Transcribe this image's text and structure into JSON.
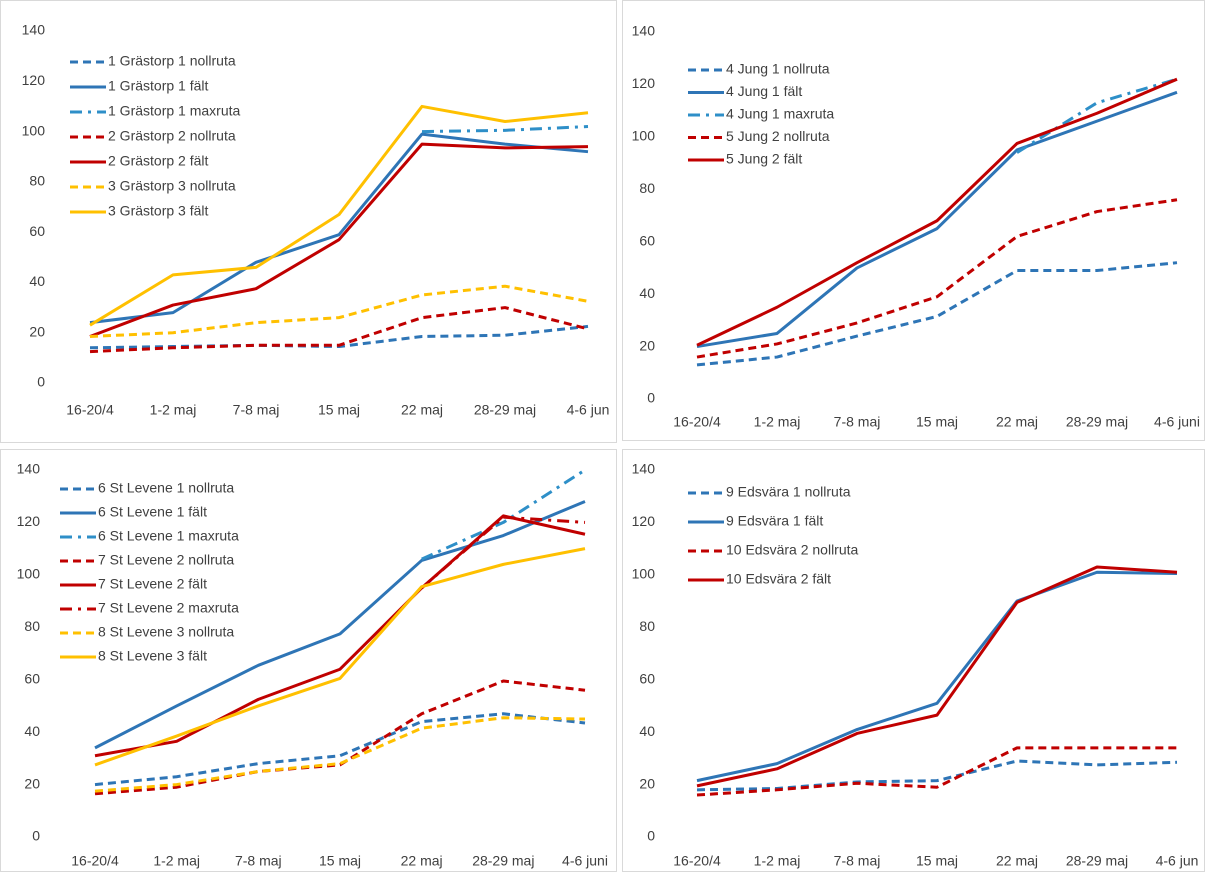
{
  "chart_data": [
    {
      "type": "line",
      "categories": [
        "16-20/4",
        "1-2 maj",
        "7-8 maj",
        "15 maj",
        "22 maj",
        "28-29 maj",
        "4-6 jun"
      ],
      "ylim": [
        0,
        140
      ],
      "yticks": [
        0,
        20,
        40,
        60,
        80,
        100,
        120,
        140
      ],
      "grid": false,
      "series": [
        {
          "name": "1 Grästorp 1 nollruta",
          "color": "#2e75b6",
          "dash": "dash",
          "values": [
            14,
            14.5,
            15,
            14.5,
            18.5,
            19,
            22.5
          ]
        },
        {
          "name": "1 Grästorp 1 fält",
          "color": "#2e75b6",
          "dash": "solid",
          "values": [
            24,
            28,
            48,
            59,
            99,
            95,
            92
          ]
        },
        {
          "name": "1 Grästorp 1 maxruta",
          "color": "#2e8fc8",
          "dash": "dashdot",
          "values": [
            null,
            null,
            null,
            null,
            100,
            100.5,
            102
          ]
        },
        {
          "name": "2 Grästorp 2 nollruta",
          "color": "#c00000",
          "dash": "dash",
          "values": [
            12.5,
            14,
            15,
            15,
            26,
            30,
            21.5
          ]
        },
        {
          "name": "2 Grästorp 2 fält",
          "color": "#c00000",
          "dash": "solid",
          "values": [
            18.5,
            31,
            37.5,
            57,
            95,
            93.5,
            94
          ]
        },
        {
          "name": "3 Grästorp 3 nollruta",
          "color": "#ffc000",
          "dash": "dash",
          "values": [
            18.5,
            20,
            24,
            26,
            35,
            38.5,
            32.5
          ]
        },
        {
          "name": "3 Grästorp 3 fält",
          "color": "#ffc000",
          "dash": "solid",
          "values": [
            23,
            43,
            46,
            67,
            110,
            104,
            107.5
          ]
        }
      ]
    },
    {
      "type": "line",
      "categories": [
        "16-20/4",
        "1-2 maj",
        "7-8 maj",
        "15 maj",
        "22 maj",
        "28-29 maj",
        "4-6 juni"
      ],
      "ylim": [
        0,
        140
      ],
      "yticks": [
        0,
        20,
        40,
        60,
        80,
        100,
        120,
        140
      ],
      "grid": false,
      "series": [
        {
          "name": "4 Jung 1 nollruta",
          "color": "#2e75b6",
          "dash": "dash",
          "values": [
            13,
            16,
            24,
            31.5,
            49,
            49,
            52
          ]
        },
        {
          "name": "4 Jung 1 fält",
          "color": "#2e75b6",
          "dash": "solid",
          "values": [
            20,
            25,
            50,
            65,
            95,
            106,
            117
          ]
        },
        {
          "name": "4 Jung 1 maxruta",
          "color": "#2e8fc8",
          "dash": "dashdot",
          "values": [
            null,
            null,
            null,
            null,
            94,
            113,
            122
          ]
        },
        {
          "name": "5 Jung 2 nollruta",
          "color": "#c00000",
          "dash": "dash",
          "values": [
            16,
            21,
            29,
            39,
            62,
            71.5,
            76
          ]
        },
        {
          "name": "5 Jung 2 fält",
          "color": "#c00000",
          "dash": "solid",
          "values": [
            20.5,
            35,
            52,
            68,
            97.5,
            109,
            122
          ]
        }
      ]
    },
    {
      "type": "line",
      "categories": [
        "16-20/4",
        "1-2 maj",
        "7-8 maj",
        "15 maj",
        "22 maj",
        "28-29 maj",
        "4-6 juni"
      ],
      "ylim": [
        0,
        140
      ],
      "yticks": [
        0,
        20,
        40,
        60,
        80,
        100,
        120,
        140
      ],
      "grid": false,
      "series": [
        {
          "name": "6 St Levene 1 nollruta",
          "color": "#2e75b6",
          "dash": "dash",
          "values": [
            20,
            23,
            28,
            31,
            44,
            47,
            43.5
          ]
        },
        {
          "name": "6 St Levene 1 fält",
          "color": "#2e75b6",
          "dash": "solid",
          "values": [
            34,
            50,
            65.5,
            77.5,
            105.5,
            115,
            128
          ]
        },
        {
          "name": "6 St Levene 1 maxruta",
          "color": "#2e8fc8",
          "dash": "dashdot",
          "values": [
            null,
            null,
            null,
            null,
            106,
            120,
            140
          ]
        },
        {
          "name": "7 St Levene 2 nollruta",
          "color": "#c00000",
          "dash": "dash",
          "values": [
            16.5,
            19,
            25,
            27.5,
            47,
            59.5,
            56
          ]
        },
        {
          "name": "7 St Levene 2 fält",
          "color": "#c00000",
          "dash": "solid",
          "values": [
            31,
            36.5,
            52.5,
            64,
            95,
            122.5,
            115.5
          ]
        },
        {
          "name": "7 St Levene 2 maxruta",
          "color": "#c00000",
          "dash": "dashdot",
          "values": [
            null,
            null,
            null,
            null,
            95,
            122,
            120
          ]
        },
        {
          "name": "8 St Levene 3 nollruta",
          "color": "#ffc000",
          "dash": "dash",
          "values": [
            17.5,
            20,
            25,
            28,
            41.5,
            45.5,
            45
          ]
        },
        {
          "name": "8 St Levene 3 fält",
          "color": "#ffc000",
          "dash": "solid",
          "values": [
            27.5,
            38.5,
            50,
            60.5,
            95.5,
            104,
            110
          ]
        }
      ]
    },
    {
      "type": "line",
      "categories": [
        "16-20/4",
        "1-2 maj",
        "7-8 maj",
        "15 maj",
        "22 maj",
        "28-29 maj",
        "4-6 jun"
      ],
      "ylim": [
        0,
        140
      ],
      "yticks": [
        0,
        20,
        40,
        60,
        80,
        100,
        120,
        140
      ],
      "grid": false,
      "series": [
        {
          "name": "9 Edsvära 1 nollruta",
          "color": "#2e75b6",
          "dash": "dash",
          "values": [
            18,
            18.5,
            21,
            21.5,
            29,
            27.5,
            28.5
          ]
        },
        {
          "name": "9 Edsvära 1 fält",
          "color": "#2e75b6",
          "dash": "solid",
          "values": [
            21.5,
            28,
            41,
            51,
            90,
            101,
            100.5
          ]
        },
        {
          "name": "10 Edsvära 2 nollruta",
          "color": "#c00000",
          "dash": "dash",
          "values": [
            16,
            18,
            20.5,
            19,
            34,
            34,
            34
          ]
        },
        {
          "name": "10 Edsvära 2 fält",
          "color": "#c00000",
          "dash": "solid",
          "values": [
            19.5,
            26,
            39.5,
            46.5,
            89.5,
            103,
            101
          ]
        }
      ]
    }
  ]
}
